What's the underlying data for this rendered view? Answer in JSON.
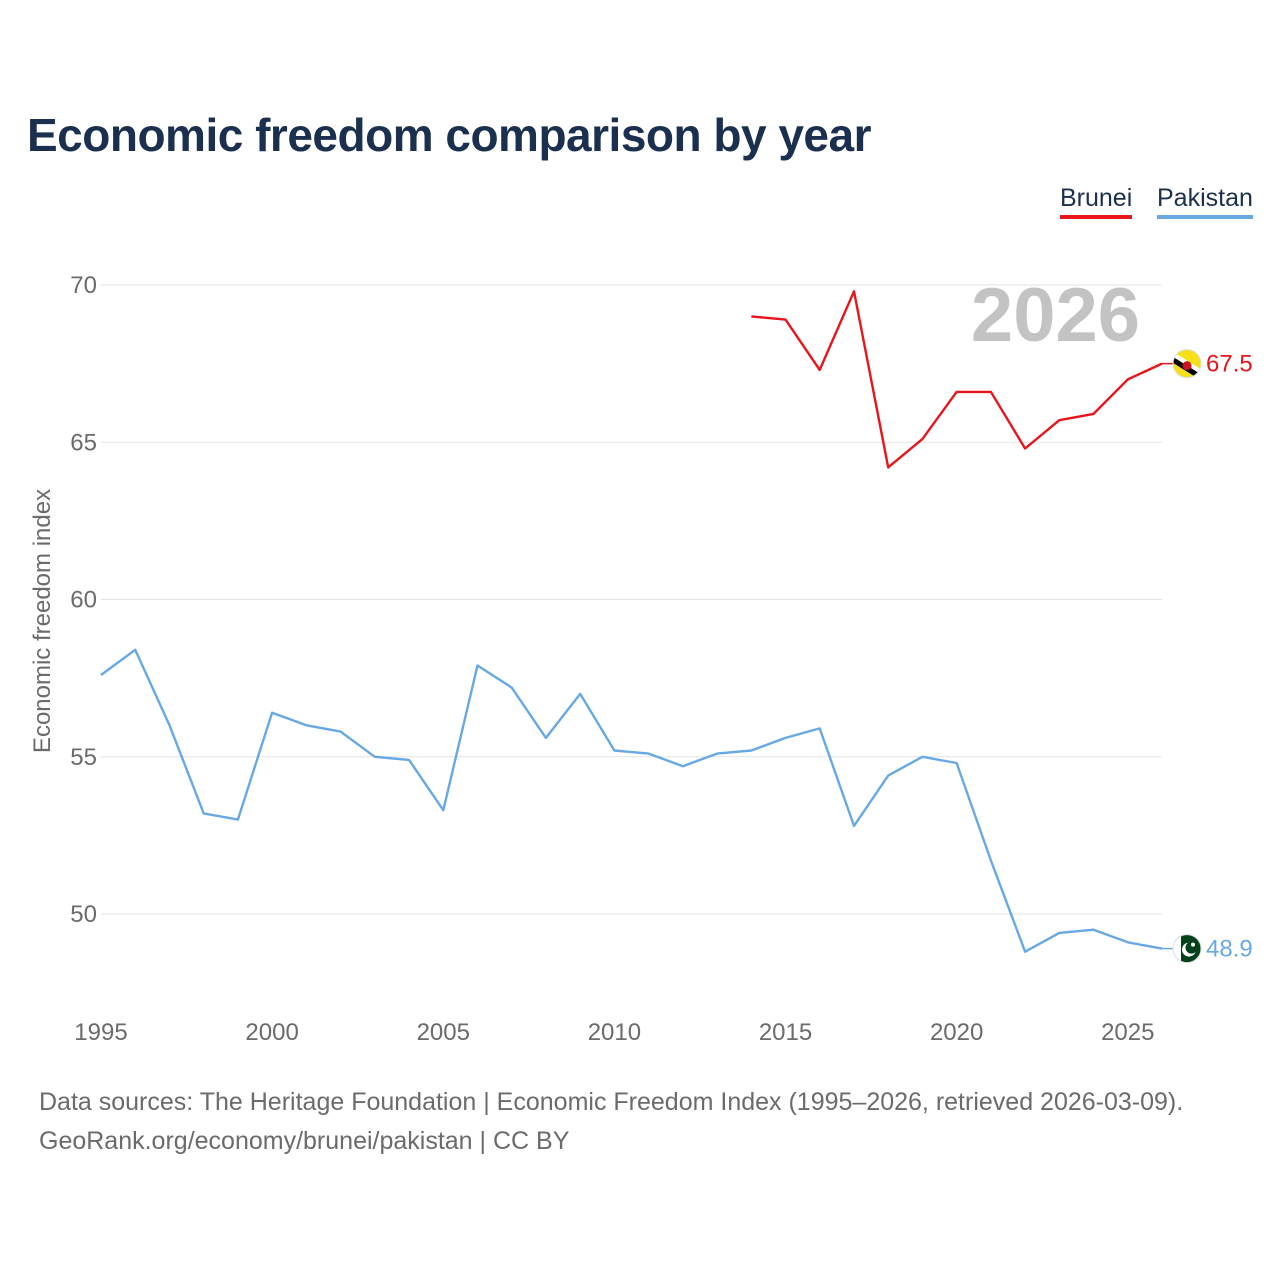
{
  "title": "Economic freedom comparison by year",
  "legend": [
    {
      "name": "Brunei",
      "color": "#e8151b"
    },
    {
      "name": "Pakistan",
      "color": "#68a9e5"
    }
  ],
  "year_watermark": "2026",
  "footer": {
    "source": "Data sources: The Heritage Foundation | Economic Freedom Index (1995–2026, retrieved 2026-03-09).",
    "credit": "GeoRank.org/economy/brunei/pakistan | CC BY"
  },
  "chart_data": {
    "type": "line",
    "title": "Economic freedom comparison by year",
    "xlabel": "",
    "ylabel": "Economic freedom index",
    "xlim": [
      1995,
      2026
    ],
    "ylim": [
      47,
      70.5
    ],
    "x_ticks": [
      1995,
      2000,
      2005,
      2010,
      2015,
      2020,
      2025
    ],
    "y_ticks": [
      50,
      55,
      60,
      65,
      70
    ],
    "grid": true,
    "legend_position": "top-right",
    "series": [
      {
        "name": "Brunei",
        "color": "#e8151b",
        "flag_icon": "brunei-flag-icon",
        "end_label": "67.5",
        "x": [
          2014,
          2015,
          2016,
          2017,
          2018,
          2019,
          2020,
          2021,
          2022,
          2023,
          2024,
          2025,
          2026
        ],
        "values": [
          69.0,
          68.9,
          67.3,
          69.8,
          64.2,
          65.1,
          66.6,
          66.6,
          64.8,
          65.7,
          65.9,
          67.0,
          67.5
        ]
      },
      {
        "name": "Pakistan",
        "color": "#68a9e5",
        "flag_icon": "pakistan-flag-icon",
        "end_label": "48.9",
        "x": [
          1995,
          1996,
          1997,
          1998,
          1999,
          2000,
          2001,
          2002,
          2003,
          2004,
          2005,
          2006,
          2007,
          2008,
          2009,
          2010,
          2011,
          2012,
          2013,
          2014,
          2015,
          2016,
          2017,
          2018,
          2019,
          2020,
          2021,
          2022,
          2023,
          2024,
          2025,
          2026
        ],
        "values": [
          57.6,
          58.4,
          56.0,
          53.2,
          53.0,
          56.4,
          56.0,
          55.8,
          55.0,
          54.9,
          53.3,
          57.9,
          57.2,
          55.6,
          57.0,
          55.2,
          55.1,
          54.7,
          55.1,
          55.2,
          55.6,
          55.9,
          52.8,
          54.4,
          55.0,
          54.8,
          51.7,
          48.8,
          49.4,
          49.5,
          49.1,
          48.9
        ]
      }
    ]
  }
}
